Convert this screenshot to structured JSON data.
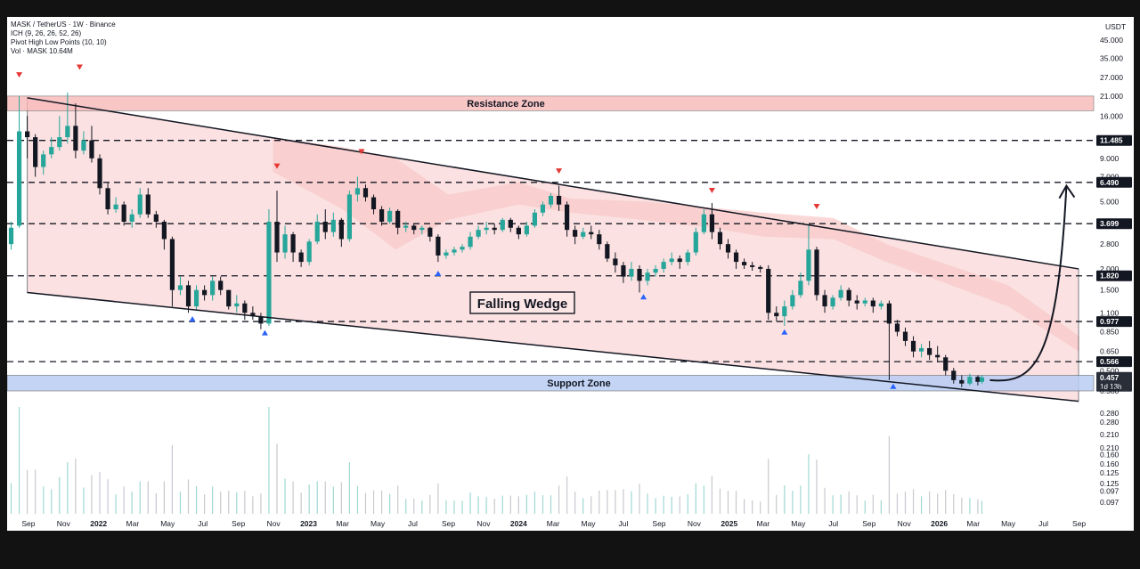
{
  "header": {
    "symbol": "MASK / TetherUS · 1W · Binance",
    "indicator_ich": "ICH (9, 26, 26, 52, 26)",
    "indicator_pivot": "Pivot High Low Points (10, 10)",
    "indicator_vol": "Vol · MASK  10.64M",
    "currency": "USDT"
  },
  "chart_data": {
    "type": "candlestick",
    "scale": "log",
    "interval": "1W",
    "x_ticks": [
      "Sep",
      "Nov",
      "2022",
      "Mar",
      "May",
      "Jul",
      "Sep",
      "Nov",
      "2023",
      "Mar",
      "May",
      "Jul",
      "Sep",
      "Nov",
      "2024",
      "Mar",
      "May",
      "Jul",
      "Sep",
      "Nov",
      "2025",
      "Mar",
      "May",
      "Jul",
      "Sep",
      "Nov",
      "2026",
      "Mar",
      "May",
      "Jul",
      "Sep"
    ],
    "y_ticks": [
      "45.000",
      "35.000",
      "27.000",
      "21.000",
      "16.000",
      "11.485",
      "9.000",
      "7.000",
      "6.490",
      "5.000",
      "3.699",
      "2.800",
      "2.000",
      "1.820",
      "1.500",
      "1.100",
      "0.977",
      "0.850",
      "0.650",
      "0.566",
      "0.500",
      "0.457",
      "0.380",
      "0.280",
      "0.210",
      "0.160",
      "0.125",
      "0.097"
    ],
    "price_lines": [
      "11.485",
      "6.490",
      "3.699",
      "1.820",
      "0.977",
      "0.566"
    ],
    "current_price": "0.457",
    "countdown": "1d 13h",
    "zones": {
      "resistance_label": "Resistance Zone",
      "resistance_range": [
        17.2,
        21.0
      ],
      "support_label": "Support Zone",
      "support_range": [
        0.38,
        0.47
      ]
    },
    "pattern_label": "Falling Wedge",
    "wedge": {
      "upper": [
        [
          "2021-08-30",
          20.5
        ],
        [
          "2026-08-31",
          2.0
        ]
      ],
      "lower": [
        [
          "2021-08-30",
          1.45
        ],
        [
          "2026-08-31",
          0.33
        ]
      ]
    },
    "projection": [
      [
        "2026-03-30",
        0.44
      ],
      [
        "2026-08-10",
        6.2
      ]
    ],
    "pivot_highs": [
      [
        "2021-08-16",
        27
      ],
      [
        "2021-11-29",
        30
      ],
      [
        "2022-11-07",
        7.8
      ],
      [
        "2023-04-03",
        9.5
      ],
      [
        "2024-03-11",
        7.3
      ],
      [
        "2024-12-02",
        5.6
      ],
      [
        "2025-06-02",
        4.5
      ]
    ],
    "pivot_lows": [
      [
        "2022-06-13",
        1.05
      ],
      [
        "2022-10-17",
        0.87
      ],
      [
        "2023-08-14",
        1.95
      ],
      [
        "2024-08-05",
        1.42
      ],
      [
        "2025-04-07",
        0.88
      ],
      [
        "2025-10-13",
        0.42
      ]
    ],
    "candles": [
      {
        "t": "2021-08-02",
        "o": 2.8,
        "h": 3.8,
        "c": 3.5,
        "l": 2.6
      },
      {
        "t": "2021-08-16",
        "o": 3.6,
        "h": 21.0,
        "c": 13.0,
        "l": 3.5
      },
      {
        "t": "2021-08-30",
        "o": 13.0,
        "h": 16.0,
        "c": 12.0,
        "l": 9.0
      },
      {
        "t": "2021-09-13",
        "o": 12.0,
        "h": 12.5,
        "c": 8.0,
        "l": 7.0
      },
      {
        "t": "2021-09-27",
        "o": 8.0,
        "h": 10.0,
        "c": 9.5,
        "l": 7.2
      },
      {
        "t": "2021-10-11",
        "o": 9.5,
        "h": 12.0,
        "c": 10.5,
        "l": 9.0
      },
      {
        "t": "2021-10-25",
        "o": 10.5,
        "h": 16.0,
        "c": 12.0,
        "l": 10.0
      },
      {
        "t": "2021-11-08",
        "o": 12.0,
        "h": 22.0,
        "c": 14.0,
        "l": 11.0
      },
      {
        "t": "2021-11-22",
        "o": 14.0,
        "h": 19.0,
        "c": 10.0,
        "l": 9.0
      },
      {
        "t": "2021-12-06",
        "o": 10.0,
        "h": 13.0,
        "c": 11.5,
        "l": 9.5
      },
      {
        "t": "2021-12-20",
        "o": 11.5,
        "h": 14.0,
        "c": 9.0,
        "l": 8.5
      },
      {
        "t": "2022-01-03",
        "o": 9.0,
        "h": 9.5,
        "c": 6.0,
        "l": 5.5
      },
      {
        "t": "2022-01-17",
        "o": 6.0,
        "h": 6.5,
        "c": 4.5,
        "l": 4.2
      },
      {
        "t": "2022-01-31",
        "o": 4.5,
        "h": 5.3,
        "c": 4.8,
        "l": 4.3
      },
      {
        "t": "2022-02-14",
        "o": 4.8,
        "h": 5.0,
        "c": 3.8,
        "l": 3.6
      },
      {
        "t": "2022-02-28",
        "o": 3.8,
        "h": 4.5,
        "c": 4.2,
        "l": 3.5
      },
      {
        "t": "2022-03-14",
        "o": 4.2,
        "h": 6.0,
        "c": 5.5,
        "l": 4.0
      },
      {
        "t": "2022-03-28",
        "o": 5.5,
        "h": 6.0,
        "c": 4.2,
        "l": 4.0
      },
      {
        "t": "2022-04-11",
        "o": 4.2,
        "h": 4.4,
        "c": 3.8,
        "l": 3.5
      },
      {
        "t": "2022-04-25",
        "o": 3.8,
        "h": 3.9,
        "c": 3.0,
        "l": 2.6
      },
      {
        "t": "2022-05-09",
        "o": 3.0,
        "h": 3.1,
        "c": 1.5,
        "l": 1.2
      },
      {
        "t": "2022-05-23",
        "o": 1.5,
        "h": 1.8,
        "c": 1.6,
        "l": 1.4
      },
      {
        "t": "2022-06-06",
        "o": 1.6,
        "h": 1.7,
        "c": 1.2,
        "l": 1.1
      },
      {
        "t": "2022-06-20",
        "o": 1.2,
        "h": 1.6,
        "c": 1.5,
        "l": 1.15
      },
      {
        "t": "2022-07-04",
        "o": 1.5,
        "h": 1.6,
        "c": 1.4,
        "l": 1.3
      },
      {
        "t": "2022-07-18",
        "o": 1.4,
        "h": 1.8,
        "c": 1.7,
        "l": 1.3
      },
      {
        "t": "2022-08-01",
        "o": 1.7,
        "h": 1.8,
        "c": 1.5,
        "l": 1.4
      },
      {
        "t": "2022-08-15",
        "o": 1.5,
        "h": 1.5,
        "c": 1.2,
        "l": 1.15
      },
      {
        "t": "2022-08-29",
        "o": 1.2,
        "h": 1.4,
        "c": 1.25,
        "l": 1.1
      },
      {
        "t": "2022-09-12",
        "o": 1.25,
        "h": 1.3,
        "c": 1.1,
        "l": 1.0
      },
      {
        "t": "2022-09-26",
        "o": 1.1,
        "h": 1.2,
        "c": 1.05,
        "l": 1.0
      },
      {
        "t": "2022-10-10",
        "o": 1.05,
        "h": 1.1,
        "c": 0.95,
        "l": 0.88
      },
      {
        "t": "2022-10-24",
        "o": 0.95,
        "h": 4.5,
        "c": 3.8,
        "l": 0.92
      },
      {
        "t": "2022-11-07",
        "o": 3.8,
        "h": 5.8,
        "c": 2.5,
        "l": 2.2
      },
      {
        "t": "2022-11-21",
        "o": 2.5,
        "h": 3.6,
        "c": 3.2,
        "l": 2.3
      },
      {
        "t": "2022-12-05",
        "o": 3.2,
        "h": 3.3,
        "c": 2.5,
        "l": 2.2
      },
      {
        "t": "2022-12-19",
        "o": 2.5,
        "h": 2.6,
        "c": 2.2,
        "l": 2.05
      },
      {
        "t": "2023-01-02",
        "o": 2.2,
        "h": 3.0,
        "c": 2.9,
        "l": 2.1
      },
      {
        "t": "2023-01-16",
        "o": 2.9,
        "h": 4.2,
        "c": 3.8,
        "l": 2.8
      },
      {
        "t": "2023-01-30",
        "o": 3.8,
        "h": 4.5,
        "c": 3.3,
        "l": 3.0
      },
      {
        "t": "2023-02-13",
        "o": 3.3,
        "h": 4.3,
        "c": 3.9,
        "l": 3.1
      },
      {
        "t": "2023-02-27",
        "o": 3.9,
        "h": 4.0,
        "c": 3.0,
        "l": 2.7
      },
      {
        "t": "2023-03-13",
        "o": 3.0,
        "h": 5.8,
        "c": 5.5,
        "l": 2.9
      },
      {
        "t": "2023-03-27",
        "o": 5.5,
        "h": 7.0,
        "c": 6.0,
        "l": 5.0
      },
      {
        "t": "2023-04-10",
        "o": 6.0,
        "h": 6.3,
        "c": 5.3,
        "l": 5.0
      },
      {
        "t": "2023-04-24",
        "o": 5.3,
        "h": 5.5,
        "c": 4.5,
        "l": 4.2
      },
      {
        "t": "2023-05-08",
        "o": 4.5,
        "h": 4.7,
        "c": 3.8,
        "l": 3.6
      },
      {
        "t": "2023-05-22",
        "o": 3.8,
        "h": 4.6,
        "c": 4.4,
        "l": 3.7
      },
      {
        "t": "2023-06-05",
        "o": 4.4,
        "h": 4.5,
        "c": 3.5,
        "l": 3.2
      },
      {
        "t": "2023-06-19",
        "o": 3.5,
        "h": 3.8,
        "c": 3.6,
        "l": 3.3
      },
      {
        "t": "2023-07-03",
        "o": 3.6,
        "h": 3.7,
        "c": 3.4,
        "l": 3.2
      },
      {
        "t": "2023-07-17",
        "o": 3.4,
        "h": 3.6,
        "c": 3.5,
        "l": 3.2
      },
      {
        "t": "2023-07-31",
        "o": 3.5,
        "h": 3.55,
        "c": 3.1,
        "l": 2.9
      },
      {
        "t": "2023-08-14",
        "o": 3.1,
        "h": 3.2,
        "c": 2.4,
        "l": 2.2
      },
      {
        "t": "2023-08-28",
        "o": 2.4,
        "h": 2.6,
        "c": 2.5,
        "l": 2.3
      },
      {
        "t": "2023-09-11",
        "o": 2.5,
        "h": 2.7,
        "c": 2.6,
        "l": 2.4
      },
      {
        "t": "2023-09-25",
        "o": 2.6,
        "h": 2.8,
        "c": 2.7,
        "l": 2.5
      },
      {
        "t": "2023-10-09",
        "o": 2.7,
        "h": 3.3,
        "c": 3.1,
        "l": 2.6
      },
      {
        "t": "2023-10-23",
        "o": 3.1,
        "h": 3.6,
        "c": 3.4,
        "l": 3.0
      },
      {
        "t": "2023-11-06",
        "o": 3.4,
        "h": 3.8,
        "c": 3.5,
        "l": 3.2
      },
      {
        "t": "2023-11-20",
        "o": 3.5,
        "h": 3.7,
        "c": 3.4,
        "l": 3.2
      },
      {
        "t": "2023-12-04",
        "o": 3.4,
        "h": 4.0,
        "c": 3.9,
        "l": 3.3
      },
      {
        "t": "2023-12-18",
        "o": 3.9,
        "h": 4.0,
        "c": 3.5,
        "l": 3.3
      },
      {
        "t": "2024-01-01",
        "o": 3.5,
        "h": 3.6,
        "c": 3.2,
        "l": 3.0
      },
      {
        "t": "2024-01-15",
        "o": 3.2,
        "h": 3.8,
        "c": 3.6,
        "l": 3.1
      },
      {
        "t": "2024-01-29",
        "o": 3.6,
        "h": 4.5,
        "c": 4.3,
        "l": 3.5
      },
      {
        "t": "2024-02-12",
        "o": 4.3,
        "h": 5.0,
        "c": 4.8,
        "l": 4.1
      },
      {
        "t": "2024-02-26",
        "o": 4.8,
        "h": 5.6,
        "c": 5.4,
        "l": 4.6
      },
      {
        "t": "2024-03-11",
        "o": 5.4,
        "h": 6.2,
        "c": 4.8,
        "l": 4.4
      },
      {
        "t": "2024-03-25",
        "o": 4.8,
        "h": 5.0,
        "c": 3.4,
        "l": 3.1
      },
      {
        "t": "2024-04-08",
        "o": 3.4,
        "h": 3.6,
        "c": 3.1,
        "l": 2.8
      },
      {
        "t": "2024-04-22",
        "o": 3.1,
        "h": 3.5,
        "c": 3.3,
        "l": 3.0
      },
      {
        "t": "2024-05-06",
        "o": 3.3,
        "h": 3.6,
        "c": 3.2,
        "l": 3.0
      },
      {
        "t": "2024-05-20",
        "o": 3.2,
        "h": 3.4,
        "c": 2.8,
        "l": 2.6
      },
      {
        "t": "2024-06-03",
        "o": 2.8,
        "h": 2.9,
        "c": 2.3,
        "l": 2.2
      },
      {
        "t": "2024-06-17",
        "o": 2.3,
        "h": 2.5,
        "c": 2.1,
        "l": 1.9
      },
      {
        "t": "2024-07-01",
        "o": 2.1,
        "h": 2.2,
        "c": 1.8,
        "l": 1.65
      },
      {
        "t": "2024-07-15",
        "o": 1.8,
        "h": 2.2,
        "c": 2.0,
        "l": 1.7
      },
      {
        "t": "2024-07-29",
        "o": 2.0,
        "h": 2.1,
        "c": 1.7,
        "l": 1.45
      },
      {
        "t": "2024-08-12",
        "o": 1.7,
        "h": 2.0,
        "c": 1.9,
        "l": 1.6
      },
      {
        "t": "2024-08-26",
        "o": 1.9,
        "h": 2.1,
        "c": 2.0,
        "l": 1.8
      },
      {
        "t": "2024-09-09",
        "o": 2.0,
        "h": 2.3,
        "c": 2.2,
        "l": 1.9
      },
      {
        "t": "2024-09-23",
        "o": 2.2,
        "h": 2.5,
        "c": 2.3,
        "l": 2.1
      },
      {
        "t": "2024-10-07",
        "o": 2.3,
        "h": 2.4,
        "c": 2.2,
        "l": 2.0
      },
      {
        "t": "2024-10-21",
        "o": 2.2,
        "h": 2.6,
        "c": 2.5,
        "l": 2.1
      },
      {
        "t": "2024-11-04",
        "o": 2.5,
        "h": 3.5,
        "c": 3.3,
        "l": 2.4
      },
      {
        "t": "2024-11-18",
        "o": 3.3,
        "h": 4.5,
        "c": 4.2,
        "l": 3.2
      },
      {
        "t": "2024-12-02",
        "o": 4.2,
        "h": 4.9,
        "c": 3.3,
        "l": 3.0
      },
      {
        "t": "2024-12-16",
        "o": 3.3,
        "h": 3.5,
        "c": 2.8,
        "l": 2.6
      },
      {
        "t": "2024-12-30",
        "o": 2.8,
        "h": 3.0,
        "c": 2.5,
        "l": 2.3
      },
      {
        "t": "2025-01-13",
        "o": 2.5,
        "h": 2.6,
        "c": 2.2,
        "l": 2.0
      },
      {
        "t": "2025-01-27",
        "o": 2.2,
        "h": 2.3,
        "c": 2.1,
        "l": 2.0
      },
      {
        "t": "2025-02-10",
        "o": 2.1,
        "h": 2.2,
        "c": 2.05,
        "l": 1.95
      },
      {
        "t": "2025-02-24",
        "o": 2.05,
        "h": 2.1,
        "c": 2.0,
        "l": 1.9
      },
      {
        "t": "2025-03-10",
        "o": 2.0,
        "h": 2.1,
        "c": 1.1,
        "l": 1.0
      },
      {
        "t": "2025-03-24",
        "o": 1.1,
        "h": 1.2,
        "c": 1.05,
        "l": 0.98
      },
      {
        "t": "2025-04-07",
        "o": 1.05,
        "h": 1.3,
        "c": 1.2,
        "l": 0.92
      },
      {
        "t": "2025-04-21",
        "o": 1.2,
        "h": 1.5,
        "c": 1.4,
        "l": 1.15
      },
      {
        "t": "2025-05-05",
        "o": 1.4,
        "h": 1.9,
        "c": 1.7,
        "l": 1.35
      },
      {
        "t": "2025-05-19",
        "o": 1.7,
        "h": 3.6,
        "c": 2.6,
        "l": 1.6
      },
      {
        "t": "2025-06-02",
        "o": 2.6,
        "h": 2.7,
        "c": 1.4,
        "l": 1.3
      },
      {
        "t": "2025-06-16",
        "o": 1.4,
        "h": 1.5,
        "c": 1.2,
        "l": 1.1
      },
      {
        "t": "2025-06-30",
        "o": 1.2,
        "h": 1.4,
        "c": 1.35,
        "l": 1.15
      },
      {
        "t": "2025-07-14",
        "o": 1.35,
        "h": 1.6,
        "c": 1.5,
        "l": 1.3
      },
      {
        "t": "2025-07-28",
        "o": 1.5,
        "h": 1.55,
        "c": 1.3,
        "l": 1.2
      },
      {
        "t": "2025-08-11",
        "o": 1.3,
        "h": 1.4,
        "c": 1.25,
        "l": 1.15
      },
      {
        "t": "2025-08-25",
        "o": 1.25,
        "h": 1.35,
        "c": 1.3,
        "l": 1.2
      },
      {
        "t": "2025-09-08",
        "o": 1.3,
        "h": 1.35,
        "c": 1.2,
        "l": 1.1
      },
      {
        "t": "2025-09-22",
        "o": 1.2,
        "h": 1.3,
        "c": 1.25,
        "l": 1.15
      },
      {
        "t": "2025-10-06",
        "o": 1.25,
        "h": 1.3,
        "c": 0.95,
        "l": 0.44
      },
      {
        "t": "2025-10-20",
        "o": 0.95,
        "h": 1.0,
        "c": 0.85,
        "l": 0.8
      },
      {
        "t": "2025-11-03",
        "o": 0.85,
        "h": 0.9,
        "c": 0.75,
        "l": 0.7
      },
      {
        "t": "2025-11-17",
        "o": 0.75,
        "h": 0.8,
        "c": 0.65,
        "l": 0.6
      },
      {
        "t": "2025-12-01",
        "o": 0.65,
        "h": 0.72,
        "c": 0.68,
        "l": 0.6
      },
      {
        "t": "2025-12-15",
        "o": 0.68,
        "h": 0.75,
        "c": 0.62,
        "l": 0.58
      },
      {
        "t": "2025-12-29",
        "o": 0.62,
        "h": 0.7,
        "c": 0.6,
        "l": 0.56
      },
      {
        "t": "2026-01-12",
        "o": 0.6,
        "h": 0.62,
        "c": 0.5,
        "l": 0.47
      },
      {
        "t": "2026-01-26",
        "o": 0.5,
        "h": 0.52,
        "c": 0.44,
        "l": 0.42
      },
      {
        "t": "2026-02-09",
        "o": 0.44,
        "h": 0.47,
        "c": 0.42,
        "l": 0.4
      },
      {
        "t": "2026-02-23",
        "o": 0.42,
        "h": 0.48,
        "c": 0.46,
        "l": 0.41
      },
      {
        "t": "2026-03-09",
        "o": 0.46,
        "h": 0.47,
        "c": 0.43,
        "l": 0.41
      },
      {
        "t": "2026-03-16",
        "o": 0.43,
        "h": 0.47,
        "c": 0.457,
        "l": 0.42
      }
    ],
    "volume_axis_ticks": [
      "0.280",
      "0.210",
      "0.160",
      "0.125",
      "0.097"
    ],
    "colors": {
      "up": "#26a69a",
      "down": "#131722",
      "wedge_fill": "#f8c9c9",
      "cloud": "#f7a8a8",
      "resistance": "#f8b8b8",
      "support": "#b9cdf3",
      "pivot_high": "#e53935",
      "pivot_low": "#2962ff"
    }
  }
}
